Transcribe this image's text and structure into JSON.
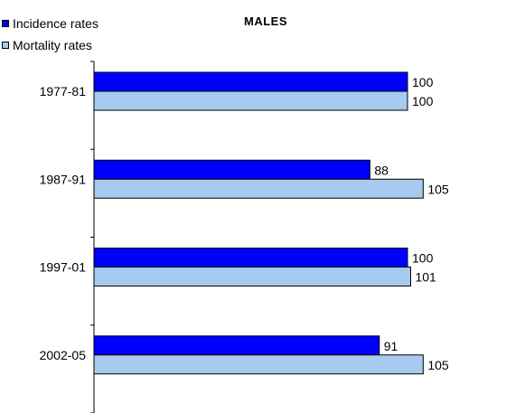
{
  "colors": {
    "incidence": "#0000ff",
    "mortality": "#a6caf0",
    "axis": "#000000"
  },
  "chart_data": {
    "type": "bar",
    "orientation": "horizontal",
    "title": "MALES",
    "categories": [
      "1977-81",
      "1987-91",
      "1997-01",
      "2002-05"
    ],
    "series": [
      {
        "name": "Incidence rates",
        "values": [
          100,
          88,
          100,
          91
        ]
      },
      {
        "name": "Mortality rates",
        "values": [
          100,
          105,
          101,
          105
        ]
      }
    ],
    "xlim": [
      0,
      110
    ],
    "grid": false,
    "legend": "top-left"
  }
}
